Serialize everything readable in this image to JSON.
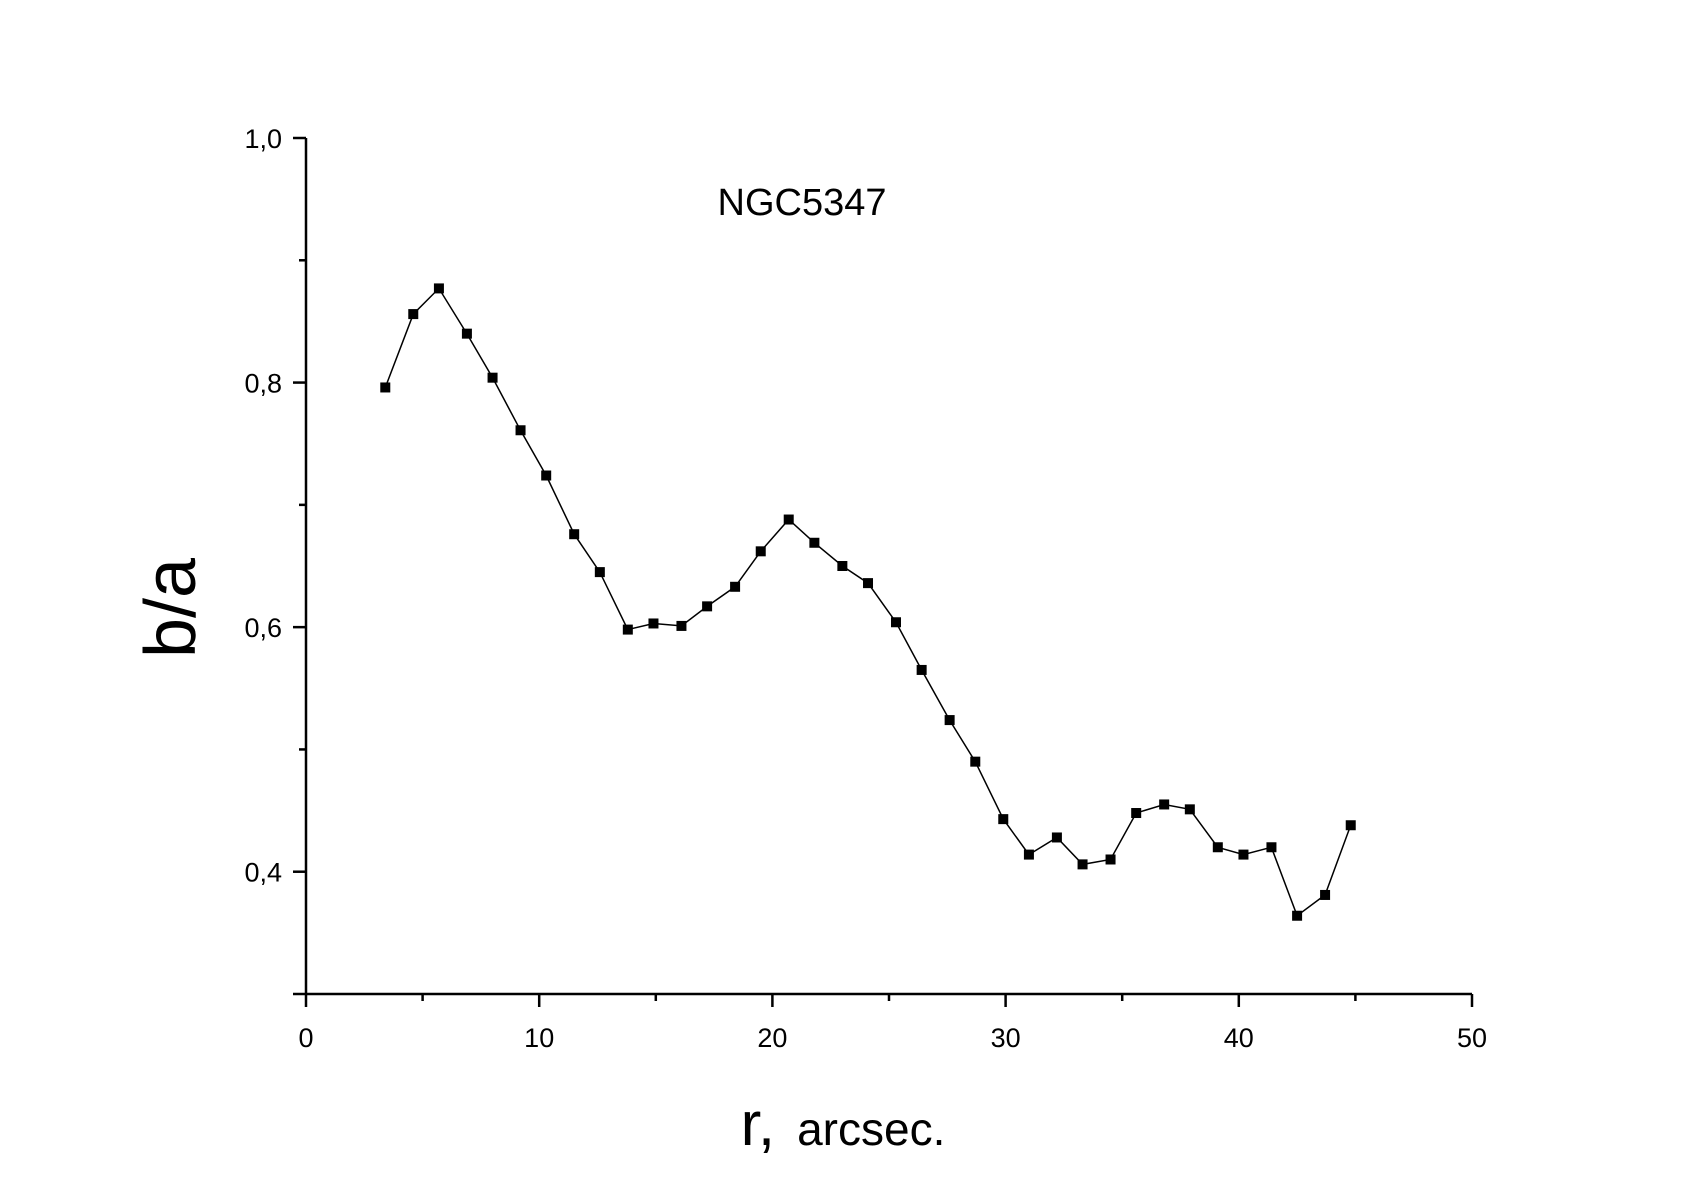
{
  "chart_data": {
    "type": "line",
    "title": "NGC5347",
    "xlabel_var": "r,",
    "xlabel_unit": "arcsec.",
    "ylabel": "b/a",
    "xlim": [
      0,
      50
    ],
    "ylim": [
      0.3,
      1.0
    ],
    "x_major_ticks": [
      0,
      10,
      20,
      30,
      40,
      50
    ],
    "x_tick_labels": [
      "0",
      "10",
      "20",
      "30",
      "40",
      "50"
    ],
    "x_minor_ticks": [
      5,
      15,
      25,
      35,
      45
    ],
    "y_major_ticks": [
      0.4,
      0.6,
      0.8,
      1.0
    ],
    "y_tick_labels": [
      "0,4",
      "0,6",
      "0,8",
      "1,0"
    ],
    "y_minor_ticks": [
      0.5,
      0.7,
      0.9
    ],
    "grid": false,
    "marker": "square",
    "color": "#000000",
    "x": [
      3.4,
      4.6,
      5.7,
      6.9,
      8.0,
      9.2,
      10.3,
      11.5,
      12.6,
      13.8,
      14.9,
      16.1,
      17.2,
      18.4,
      19.5,
      20.7,
      21.8,
      23.0,
      24.1,
      25.3,
      26.4,
      27.6,
      28.7,
      29.9,
      31.0,
      32.2,
      33.3,
      34.5,
      35.6,
      36.8,
      37.9,
      39.1,
      40.2,
      41.4,
      42.5,
      43.7,
      44.8
    ],
    "y": [
      0.796,
      0.856,
      0.877,
      0.84,
      0.804,
      0.761,
      0.724,
      0.676,
      0.645,
      0.598,
      0.603,
      0.601,
      0.617,
      0.633,
      0.662,
      0.688,
      0.669,
      0.65,
      0.636,
      0.604,
      0.565,
      0.524,
      0.49,
      0.443,
      0.414,
      0.428,
      0.406,
      0.41,
      0.448,
      0.455,
      0.451,
      0.42,
      0.414,
      0.42,
      0.364,
      0.381,
      0.438
    ]
  }
}
